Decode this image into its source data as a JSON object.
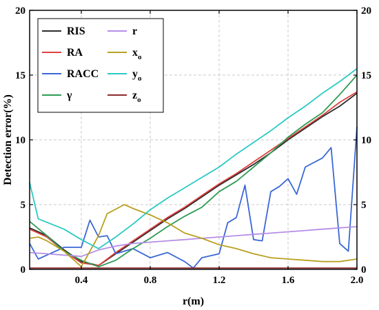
{
  "chart_data": {
    "type": "line",
    "xlabel": "r(m)",
    "ylabel": "Detection error(%)",
    "xlim": [
      0.1,
      2.0
    ],
    "ylim": [
      0,
      20
    ],
    "xticks": [
      "0.4",
      "0.8",
      "1.2",
      "1.6",
      "2.0"
    ],
    "xtick_values": [
      0.4,
      0.8,
      1.2,
      1.6,
      2.0
    ],
    "yticks": [
      "0",
      "5",
      "10",
      "15",
      "20"
    ],
    "ytick_values": [
      0,
      5,
      10,
      15,
      20
    ],
    "right_axis_mirrored": true,
    "grid": true,
    "legend_position": "top-left",
    "series": [
      {
        "name": "RIS",
        "color": "#2b2b2b",
        "points": [
          [
            0.1,
            3.2
          ],
          [
            0.2,
            2.6
          ],
          [
            0.3,
            1.5
          ],
          [
            0.4,
            0.6
          ],
          [
            0.5,
            0.3
          ],
          [
            0.6,
            1.2
          ],
          [
            0.7,
            2.1
          ],
          [
            0.8,
            3.0
          ],
          [
            0.9,
            3.9
          ],
          [
            1.0,
            4.7
          ],
          [
            1.1,
            5.6
          ],
          [
            1.2,
            6.5
          ],
          [
            1.3,
            7.3
          ],
          [
            1.4,
            8.1
          ],
          [
            1.5,
            9.0
          ],
          [
            1.6,
            10.0
          ],
          [
            1.7,
            10.9
          ],
          [
            1.8,
            11.8
          ],
          [
            1.9,
            12.6
          ],
          [
            2.0,
            13.6
          ]
        ]
      },
      {
        "name": "RA",
        "color": "#e0403e",
        "points": [
          [
            0.1,
            3.1
          ],
          [
            0.2,
            2.5
          ],
          [
            0.3,
            1.4
          ],
          [
            0.4,
            0.5
          ],
          [
            0.5,
            0.3
          ],
          [
            0.6,
            1.3
          ],
          [
            0.7,
            2.2
          ],
          [
            0.8,
            3.1
          ],
          [
            0.9,
            4.0
          ],
          [
            1.0,
            4.8
          ],
          [
            1.1,
            5.7
          ],
          [
            1.2,
            6.6
          ],
          [
            1.3,
            7.4
          ],
          [
            1.4,
            8.3
          ],
          [
            1.5,
            9.2
          ],
          [
            1.6,
            10.1
          ],
          [
            1.7,
            11.0
          ],
          [
            1.8,
            11.9
          ],
          [
            1.9,
            12.9
          ],
          [
            2.0,
            13.7
          ]
        ]
      },
      {
        "name": "RACC",
        "color": "#3a67d6",
        "points": [
          [
            0.1,
            2.0
          ],
          [
            0.15,
            0.8
          ],
          [
            0.2,
            1.1
          ],
          [
            0.3,
            1.7
          ],
          [
            0.4,
            1.7
          ],
          [
            0.45,
            3.8
          ],
          [
            0.5,
            2.5
          ],
          [
            0.55,
            2.6
          ],
          [
            0.6,
            1.2
          ],
          [
            0.7,
            1.6
          ],
          [
            0.8,
            0.9
          ],
          [
            0.9,
            1.3
          ],
          [
            1.0,
            0.6
          ],
          [
            1.05,
            0.1
          ],
          [
            1.1,
            0.9
          ],
          [
            1.2,
            1.2
          ],
          [
            1.25,
            3.6
          ],
          [
            1.3,
            4.0
          ],
          [
            1.35,
            6.5
          ],
          [
            1.4,
            2.3
          ],
          [
            1.45,
            2.2
          ],
          [
            1.5,
            6.0
          ],
          [
            1.55,
            6.4
          ],
          [
            1.6,
            7.0
          ],
          [
            1.65,
            5.8
          ],
          [
            1.7,
            7.9
          ],
          [
            1.8,
            8.6
          ],
          [
            1.85,
            9.4
          ],
          [
            1.9,
            2.0
          ],
          [
            1.95,
            1.4
          ],
          [
            2.0,
            11.0
          ]
        ]
      },
      {
        "name": "γ",
        "color": "#2e9a52",
        "points": [
          [
            0.1,
            3.7
          ],
          [
            0.2,
            2.6
          ],
          [
            0.3,
            1.4
          ],
          [
            0.4,
            0.7
          ],
          [
            0.5,
            0.2
          ],
          [
            0.6,
            0.7
          ],
          [
            0.7,
            1.6
          ],
          [
            0.8,
            2.4
          ],
          [
            0.9,
            3.3
          ],
          [
            1.0,
            4.1
          ],
          [
            1.1,
            4.8
          ],
          [
            1.2,
            6.0
          ],
          [
            1.3,
            6.8
          ],
          [
            1.4,
            7.9
          ],
          [
            1.5,
            9.0
          ],
          [
            1.6,
            10.2
          ],
          [
            1.7,
            11.2
          ],
          [
            1.8,
            12.1
          ],
          [
            1.9,
            13.5
          ],
          [
            2.0,
            15.0
          ]
        ]
      },
      {
        "name": "r",
        "color": "#b58ee6",
        "points": [
          [
            0.1,
            1.3
          ],
          [
            0.2,
            1.2
          ],
          [
            0.3,
            1.1
          ],
          [
            0.4,
            1.0
          ],
          [
            0.5,
            1.5
          ],
          [
            0.6,
            1.8
          ],
          [
            0.7,
            2.0
          ],
          [
            0.8,
            2.1
          ],
          [
            0.9,
            2.2
          ],
          [
            1.0,
            2.3
          ],
          [
            1.1,
            2.4
          ],
          [
            1.2,
            2.5
          ],
          [
            1.3,
            2.6
          ],
          [
            1.4,
            2.7
          ],
          [
            1.5,
            2.8
          ],
          [
            1.6,
            2.9
          ],
          [
            1.7,
            3.0
          ],
          [
            1.8,
            3.1
          ],
          [
            1.9,
            3.2
          ],
          [
            2.0,
            3.3
          ]
        ]
      },
      {
        "name": "xo",
        "color": "#b8a020",
        "points": [
          [
            0.1,
            2.4
          ],
          [
            0.15,
            2.5
          ],
          [
            0.2,
            2.2
          ],
          [
            0.3,
            1.4
          ],
          [
            0.4,
            0.2
          ],
          [
            0.5,
            2.6
          ],
          [
            0.55,
            4.3
          ],
          [
            0.65,
            5.0
          ],
          [
            0.7,
            4.7
          ],
          [
            0.8,
            4.2
          ],
          [
            0.9,
            3.6
          ],
          [
            1.0,
            2.8
          ],
          [
            1.1,
            2.4
          ],
          [
            1.2,
            1.9
          ],
          [
            1.3,
            1.6
          ],
          [
            1.4,
            1.2
          ],
          [
            1.5,
            0.9
          ],
          [
            1.6,
            0.8
          ],
          [
            1.7,
            0.7
          ],
          [
            1.8,
            0.6
          ],
          [
            1.9,
            0.6
          ],
          [
            2.0,
            0.8
          ]
        ]
      },
      {
        "name": "yo",
        "color": "#2ac9c4",
        "points": [
          [
            0.1,
            6.7
          ],
          [
            0.15,
            3.9
          ],
          [
            0.3,
            3.1
          ],
          [
            0.4,
            2.3
          ],
          [
            0.5,
            1.6
          ],
          [
            0.6,
            2.5
          ],
          [
            0.7,
            3.5
          ],
          [
            0.8,
            4.6
          ],
          [
            0.9,
            5.5
          ],
          [
            1.0,
            6.3
          ],
          [
            1.1,
            7.1
          ],
          [
            1.2,
            7.9
          ],
          [
            1.3,
            8.9
          ],
          [
            1.4,
            9.8
          ],
          [
            1.5,
            10.7
          ],
          [
            1.6,
            11.7
          ],
          [
            1.7,
            12.6
          ],
          [
            1.8,
            13.6
          ],
          [
            1.9,
            14.5
          ],
          [
            2.0,
            15.5
          ]
        ]
      },
      {
        "name": "zo",
        "color": "#8b2a2a",
        "points": [
          [
            0.1,
            0.1
          ],
          [
            0.3,
            0.1
          ],
          [
            0.5,
            0.1
          ],
          [
            0.7,
            0.1
          ],
          [
            0.9,
            0.1
          ],
          [
            1.1,
            0.1
          ],
          [
            1.3,
            0.1
          ],
          [
            1.5,
            0.1
          ],
          [
            1.7,
            0.1
          ],
          [
            1.9,
            0.1
          ],
          [
            2.0,
            0.1
          ]
        ]
      }
    ]
  },
  "legend": {
    "left_column": [
      {
        "label": "RIS",
        "sub": "",
        "color": "#2b2b2b"
      },
      {
        "label": "RA",
        "sub": "",
        "color": "#e0403e"
      },
      {
        "label": "RACC",
        "sub": "",
        "color": "#3a67d6"
      },
      {
        "label": "γ",
        "sub": "",
        "color": "#2e9a52"
      }
    ],
    "right_column": [
      {
        "label": "r",
        "sub": "",
        "color": "#b58ee6"
      },
      {
        "label": "x",
        "sub": "o",
        "color": "#b8a020"
      },
      {
        "label": "y",
        "sub": "o",
        "color": "#2ac9c4"
      },
      {
        "label": "z",
        "sub": "o",
        "color": "#8b2a2a"
      }
    ]
  }
}
